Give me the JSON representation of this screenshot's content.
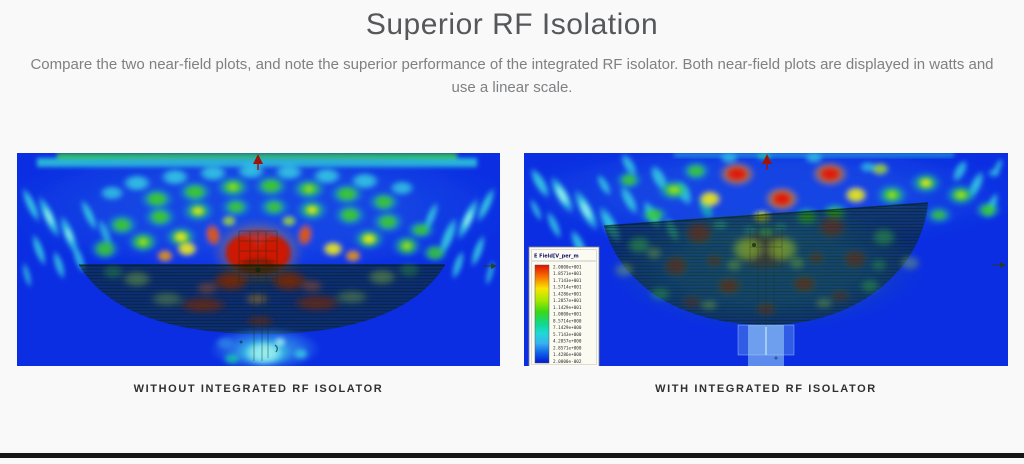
{
  "header": {
    "title": "Superior RF Isolation",
    "subtitle": "Compare the two near-field plots, and note the superior performance of the integrated RF isolator. Both near-field plots are displayed in watts and use a linear scale."
  },
  "figures": [
    {
      "caption": "WITHOUT INTEGRATED RF ISOLATOR"
    },
    {
      "caption": "WITH INTEGRATED RF ISOLATOR",
      "legend": {
        "title": "E Field[V_per_m",
        "entries": [
          "2.0000e+001",
          "1.8571e+001",
          "1.7143e+001",
          "1.5714e+001",
          "1.4286e+001",
          "1.2857e+001",
          "1.1429e+001",
          "1.0000e+001",
          "8.5714e+000",
          "7.1429e+000",
          "5.7143e+000",
          "4.2857e+000",
          "2.8571e+000",
          "1.4286e+000",
          "2.0000e-002"
        ]
      }
    }
  ],
  "palette": {
    "background": "#0b2ee2",
    "light_blue": "#2f86e8",
    "cyan_light": "#9df0f2",
    "cyan": "#38d6e3",
    "teal": "#18cfa6",
    "green": "#3ecb28",
    "yellow_green": "#a9e41e",
    "yellow": "#f4ee16",
    "orange": "#f49a0d",
    "red_orange": "#ee5a0a",
    "red": "#e31505",
    "dark_red": "#9c1a04",
    "maroon": "#7a2800"
  },
  "page": {
    "background": "#f9f9f9",
    "divider_color": "#161616"
  }
}
